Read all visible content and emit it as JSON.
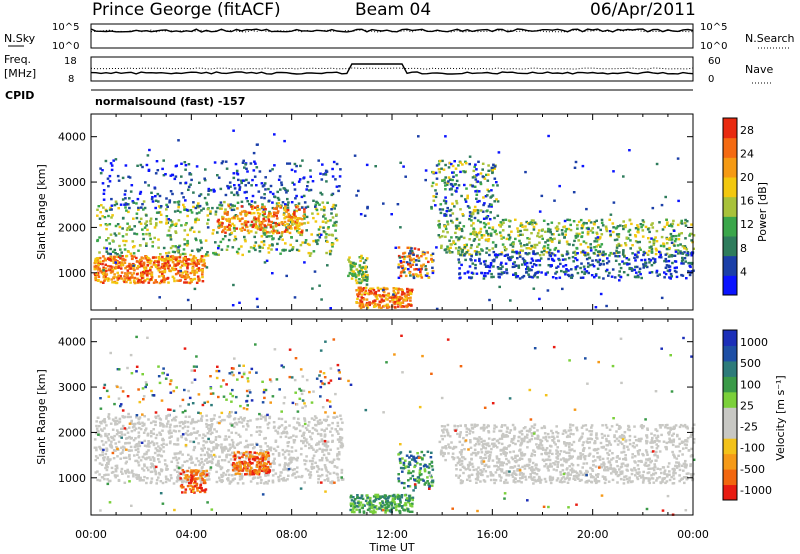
{
  "header": {
    "station": "Prince George (fitACF)",
    "beam": "Beam 04",
    "date": "06/Apr/2011"
  },
  "panel_labels": {
    "nsky": "N.Sky",
    "nsearch": "N.Search",
    "freq_line1": "Freq.",
    "freq_line2": "[MHz]",
    "nave": "Nave",
    "cpid": "CPID",
    "cpid_value": "normalsound (fast) -157"
  },
  "status_axes": {
    "nsky_ticks": [
      "10^5",
      "10^0"
    ],
    "nsearch_ticks": [
      "10^5",
      "10^0"
    ],
    "freq_ticks": [
      "18",
      "8"
    ],
    "nave_ticks": [
      "60",
      "0"
    ]
  },
  "colors": {
    "power": [
      "#0b14ff",
      "#1b3fa8",
      "#2e7c5c",
      "#3aa64a",
      "#a8c23a",
      "#f2c80f",
      "#f59a14",
      "#f46a12",
      "#e82a10"
    ],
    "velocity": [
      "#e81c12",
      "#f2670f",
      "#f59a18",
      "#f3c21a",
      "#c8c8c4",
      "#c8c8c4",
      "#7bd03a",
      "#3a9a48",
      "#2d7b7a",
      "#1e4fa5",
      "#1c2fb8"
    ]
  },
  "chart_data": [
    {
      "type": "heatmap",
      "name": "power",
      "xlabel": "",
      "ylabel": "Slant Range [km]",
      "xlim": [
        0,
        24
      ],
      "ylim": [
        180,
        4500
      ],
      "y_ticks": [
        "1000",
        "2000",
        "3000",
        "4000"
      ],
      "colorbar_label": "Power [dB]",
      "colorbar_ticks": [
        "28",
        "24",
        "20",
        "16",
        "12",
        "8",
        "4"
      ],
      "colorbar_range": [
        0,
        30
      ]
    },
    {
      "type": "heatmap",
      "name": "velocity",
      "xlabel": "Time UT",
      "ylabel": "Slant Range [km]",
      "xlim": [
        0,
        24
      ],
      "ylim": [
        180,
        4500
      ],
      "x_ticks": [
        "00:00",
        "04:00",
        "08:00",
        "12:00",
        "16:00",
        "20:00",
        "00:00"
      ],
      "y_ticks": [
        "1000",
        "2000",
        "3000",
        "4000"
      ],
      "colorbar_label": "Velocity [m s⁻¹]",
      "colorbar_ticks": [
        "1000",
        "500",
        "100",
        "25",
        "-25",
        "-100",
        "-500",
        "-1000"
      ]
    }
  ]
}
